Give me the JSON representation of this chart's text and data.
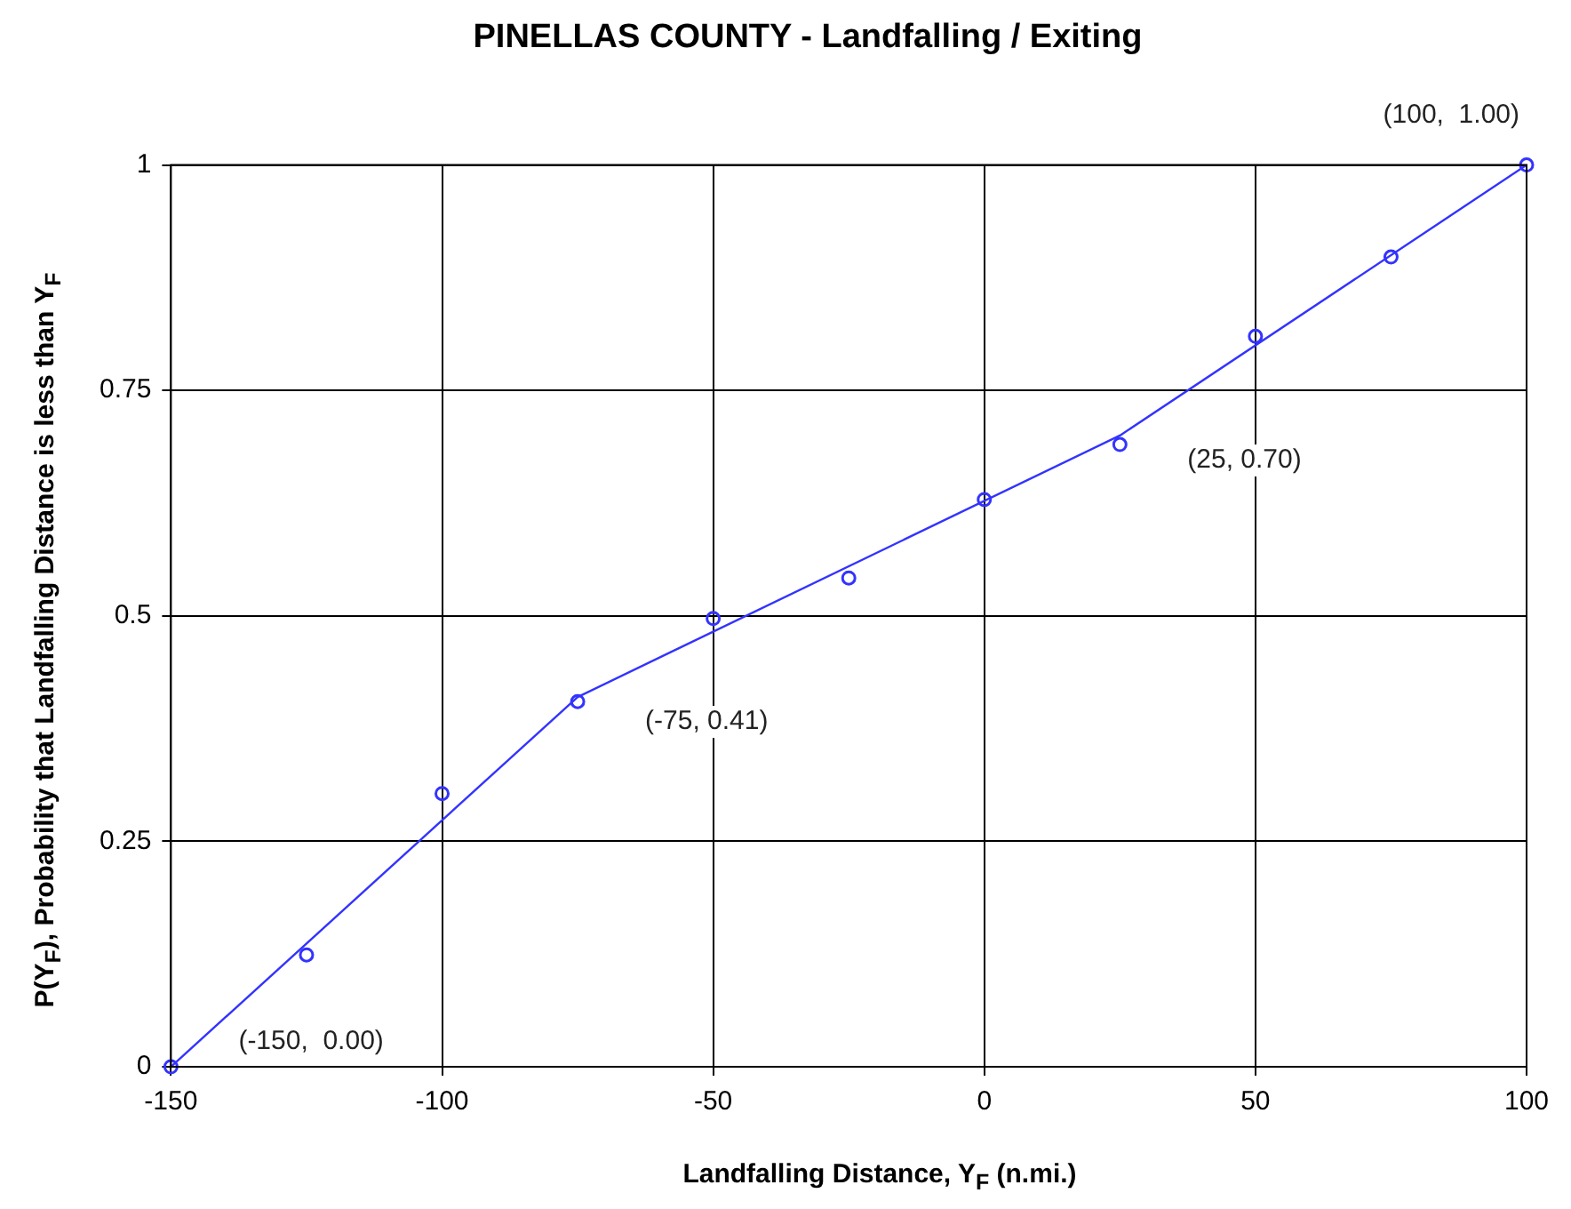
{
  "chart_data": {
    "type": "scatter",
    "title": "PINELLAS COUNTY - Landfalling / Exiting",
    "xlabel": "Landfalling Distance, Y$_{F}$ (n.mi.)",
    "ylabel": "P(Y$_{F}$), Probability that Landfalling Distance is less than Y$_{F}$",
    "xlim": [
      -150,
      100
    ],
    "xticks": [
      -150,
      -100,
      -50,
      0,
      50,
      100
    ],
    "ylim": [
      0,
      1
    ],
    "yticks": [
      0,
      0.25,
      0.5,
      0.75,
      1
    ],
    "grid": true,
    "legend": false,
    "series": [
      {
        "color": "#3333ff",
        "marker": "circle",
        "x": [
          -150,
          -125,
          -100,
          -75,
          -50,
          -25,
          0,
          25,
          50,
          75,
          100
        ],
        "values": [
          0,
          0.124,
          0.303,
          0.405,
          0.497,
          0.542,
          0.629,
          0.69,
          0.81,
          0.898,
          1.0
        ]
      },
      {
        "type": "line",
        "color": "#3333ff",
        "marker": "none",
        "line_style": "solid",
        "x": [
          -150,
          -75,
          25,
          100
        ],
        "values": [
          0,
          0.41,
          0.7,
          1.0
        ]
      }
    ],
    "annotations": [
      {
        "text": "(-150,  0.00)",
        "x": -150,
        "y": 0
      },
      {
        "text": "(-75, 0.41)",
        "x": -75,
        "y": 0.41
      },
      {
        "text": "(25, 0.70)",
        "x": 25,
        "y": 0.7
      },
      {
        "text": "(100,  1.00)",
        "x": 100,
        "y": 1
      }
    ]
  }
}
